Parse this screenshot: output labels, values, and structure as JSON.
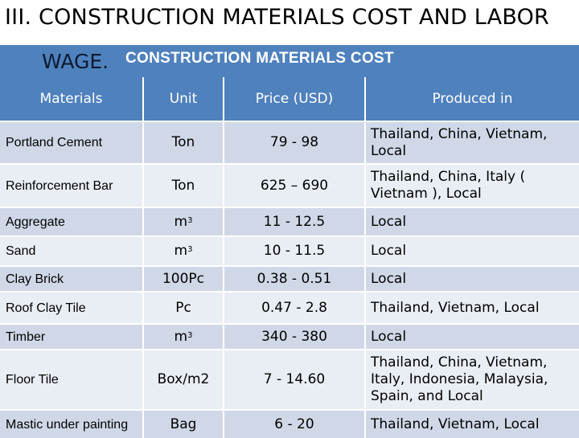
{
  "heading": {
    "line1": "III. CONSTRUCTION MATERIALS COST AND LABOR",
    "line2": "WAGE."
  },
  "subtitle": "CONSTRUCTION MATERIALS COST",
  "table": {
    "headers": [
      "Materials",
      "Unit",
      "Price (USD)",
      "Produced in"
    ],
    "rows": [
      {
        "material": "Portland Cement",
        "unit": "Ton",
        "unit_sup": "",
        "price": "79 - 98",
        "produced": "Thailand, China, Vietnam, Local",
        "produced_align": "left"
      },
      {
        "material": "Reinforcement Bar",
        "unit": "Ton",
        "unit_sup": "",
        "price": "625 – 690",
        "produced": "Thailand, China, Italy ( Vietnam ), Local",
        "produced_align": "left"
      },
      {
        "material": "Aggregate",
        "unit": "m",
        "unit_sup": "3",
        "price": "11 - 12.5",
        "produced": "Local",
        "produced_align": "left"
      },
      {
        "material": "Sand",
        "unit": "m",
        "unit_sup": "3",
        "price": "10 - 11.5",
        "produced": "Local",
        "produced_align": "left"
      },
      {
        "material": "Clay Brick",
        "unit": "100Pc",
        "unit_sup": "",
        "price": "0.38 - 0.51",
        "produced": "Local",
        "produced_align": "left"
      },
      {
        "material": "Roof Clay Tile",
        "unit": "Pc",
        "unit_sup": "",
        "price": "0.47 - 2.8",
        "produced": "Thailand, Vietnam, Local",
        "produced_align": "left"
      },
      {
        "material": "Timber",
        "unit": "m",
        "unit_sup": "3",
        "price": "340 - 380",
        "produced": "Local",
        "produced_align": "left"
      },
      {
        "material": "Floor Tile",
        "unit": "Box/m2",
        "unit_sup": "",
        "price": "7 - 14.60",
        "produced": "Thailand, China, Vietnam, Italy, Indonesia, Malaysia, Spain, and Local",
        "produced_align": "left"
      },
      {
        "material": "Mastic under painting",
        "unit": "Bag",
        "unit_sup": "",
        "price": "6 - 20",
        "produced": "Thailand, Vietnam, Local",
        "produced_align": "left"
      }
    ]
  },
  "colors": {
    "header_bg": "#4f81bd",
    "row_odd": "#d0d8e8",
    "row_even": "#e9edf4"
  }
}
